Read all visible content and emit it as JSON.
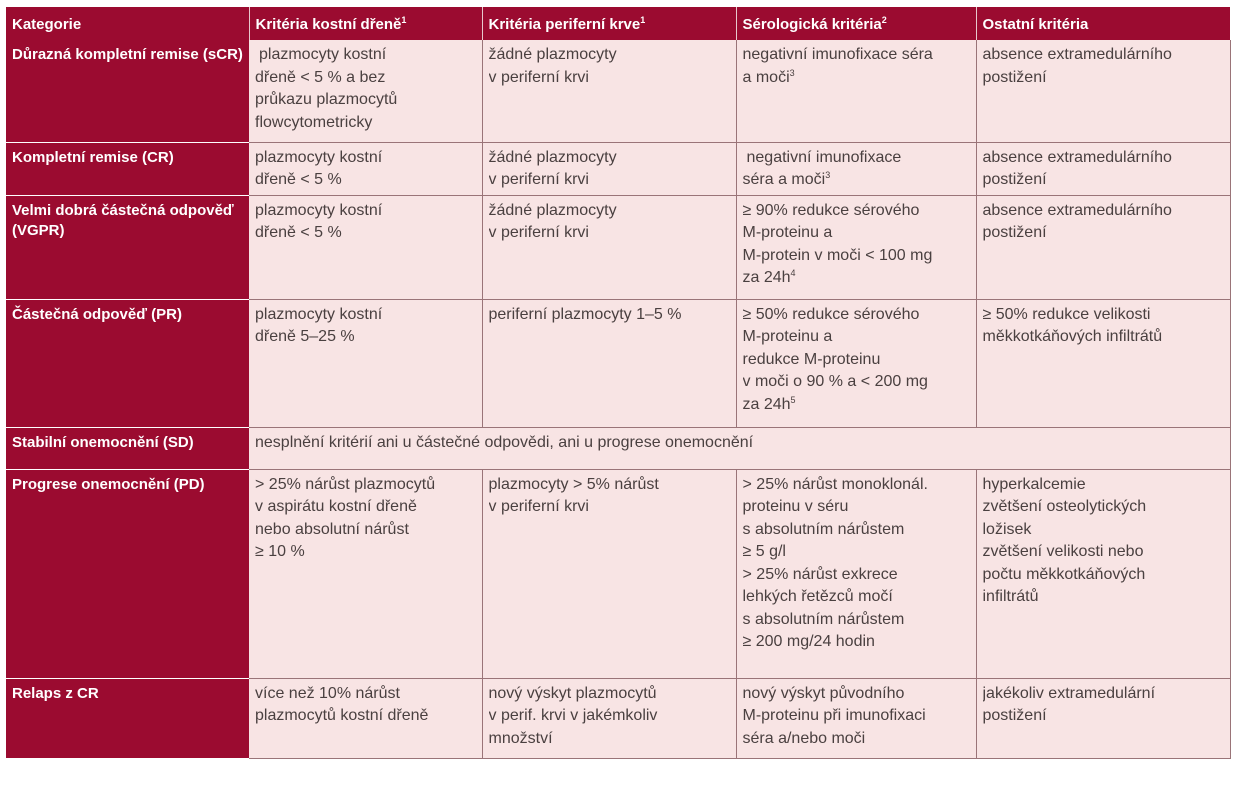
{
  "table": {
    "headers": [
      {
        "text": "Kategorie",
        "sup": ""
      },
      {
        "text": "Kritéria kostní dřeně",
        "sup": "1"
      },
      {
        "text": "Kritéria periferní krve",
        "sup": "1"
      },
      {
        "text": "Sérologická kritéria",
        "sup": "2"
      },
      {
        "text": "Ostatní kritéria",
        "sup": ""
      }
    ],
    "rows": {
      "scr": {
        "category": [
          "Důrazná kompletní",
          "remise (sCR)"
        ],
        "bone_marrow": [
          "plazmocyty kostní",
          "dřeně < 5 % a bez",
          "průkazu plazmocytů",
          "flowcytometricky"
        ],
        "peripheral_blood": [
          "žádné plazmocyty",
          "v periferní krvi"
        ],
        "serology": [
          "negativní imunofixace séra",
          "a moči"
        ],
        "serology_sup": "3",
        "other": [
          "absence extramedulárního",
          "postižení"
        ]
      },
      "cr": {
        "category": [
          "Kompletní remise (CR)"
        ],
        "bone_marrow": [
          "plazmocyty kostní",
          "dřeně < 5 %"
        ],
        "peripheral_blood": [
          "žádné plazmocyty",
          "v periferní krvi"
        ],
        "serology": [
          "negativní imunofixace",
          "séra a moči"
        ],
        "serology_sup": "3",
        "other": [
          "absence extramedulárního",
          "postižení"
        ]
      },
      "vgpr": {
        "category": [
          "Velmi dobrá částečná",
          "odpověď (VGPR)"
        ],
        "bone_marrow": [
          "plazmocyty kostní",
          "dřeně < 5 %"
        ],
        "peripheral_blood": [
          "žádné plazmocyty",
          "v periferní krvi"
        ],
        "serology": [
          "≥ 90% redukce sérového",
          "M-proteinu a",
          "M-protein v moči < 100 mg",
          "za 24h"
        ],
        "serology_sup": "4",
        "other": [
          "absence extramedulárního",
          "postižení"
        ]
      },
      "pr": {
        "category": [
          "Částečná odpověď (PR)"
        ],
        "bone_marrow": [
          "plazmocyty kostní",
          "dřeně 5–25 %"
        ],
        "peripheral_blood": [
          "periferní plazmocyty 1–5 %"
        ],
        "serology": [
          "≥ 50% redukce sérového",
          "M-proteinu a",
          "redukce M-proteinu",
          "v moči o 90 % a < 200 mg",
          "za 24h"
        ],
        "serology_sup": "5",
        "other": [
          "≥ 50% redukce velikosti",
          "měkkotkáňových infiltrátů"
        ]
      },
      "sd": {
        "category": [
          "Stabilní onemocnění (SD)"
        ],
        "merged": "nesplnění kritérií ani u částečné odpovědi, ani u progrese onemocnění"
      },
      "pd": {
        "category": [
          "Progrese onemocnění (PD)"
        ],
        "bone_marrow": [
          "> 25% nárůst plazmocytů",
          "v aspirátu kostní dřeně",
          "nebo absolutní nárůst",
          "≥ 10 %"
        ],
        "peripheral_blood": [
          "plazmocyty > 5% nárůst",
          "v periferní krvi"
        ],
        "serology": [
          "> 25% nárůst monoklonál.",
          "proteinu v séru",
          "s absolutním nárůstem",
          "≥ 5 g/l",
          "> 25% nárůst exkrece",
          "lehkých řetězců močí",
          "s absolutním nárůstem",
          "≥ 200 mg/24 hodin"
        ],
        "other": [
          "hyperkalcemie",
          "zvětšení osteolytických",
          "ložisek",
          "zvětšení velikosti nebo",
          "počtu měkkotkáňových",
          "infiltrátů"
        ]
      },
      "relaps": {
        "category": [
          "Relaps z CR"
        ],
        "bone_marrow": [
          "více než 10% nárůst",
          "plazmocytů kostní dřeně"
        ],
        "peripheral_blood": [
          "nový výskyt plazmocytů",
          "v perif. krvi v jakémkoliv",
          "množství"
        ],
        "serology": [
          "nový výskyt původního",
          "M-proteinu při imunofixaci",
          "séra a/nebo moči"
        ],
        "other": [
          "jakékoliv extramedulární",
          "postižení"
        ]
      }
    }
  }
}
